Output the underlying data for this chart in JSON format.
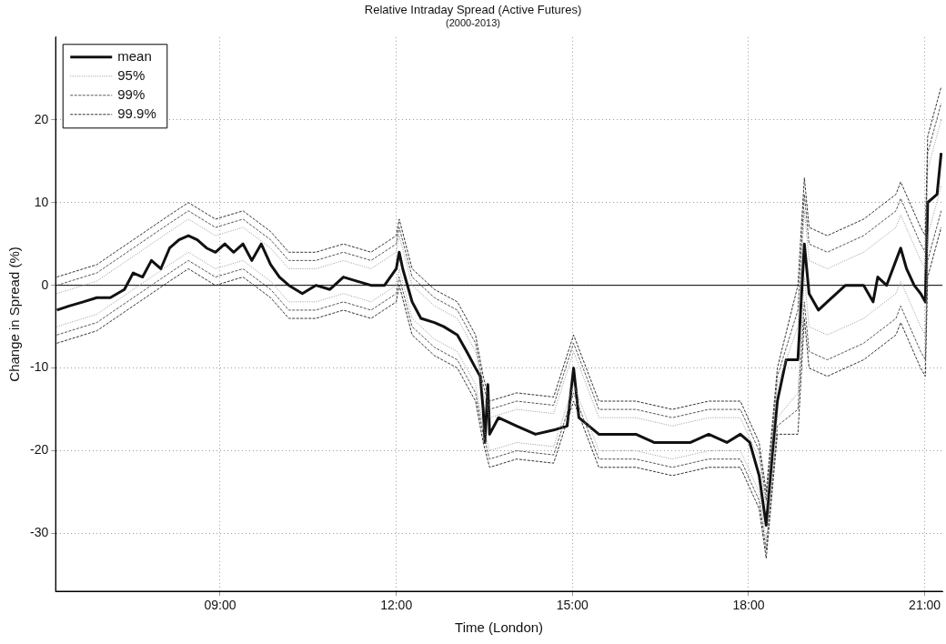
{
  "chart_data": {
    "type": "line",
    "title": "Relative Intraday Spread (Active Futures)",
    "subtitle": "(2000-2013)",
    "xlabel": "Time (London)",
    "ylabel": "Change in Spread (%)",
    "xlim": [
      6.2,
      21.3
    ],
    "xticks": [
      {
        "value": 9,
        "label": "09:00"
      },
      {
        "value": 12,
        "label": "12:00"
      },
      {
        "value": 15,
        "label": "15:00"
      },
      {
        "value": 18,
        "label": "18:00"
      },
      {
        "value": 21,
        "label": "21:00"
      }
    ],
    "ylim": [
      -37,
      30
    ],
    "yticks": [
      -30,
      -20,
      -10,
      0,
      10,
      20
    ],
    "grid": true,
    "legend": "top left",
    "marker": "none",
    "ref_lines": [
      {
        "axis": "y",
        "value": 0,
        "color": "#000000",
        "line_style": "solid"
      }
    ],
    "series": [
      {
        "name": "99.9%",
        "color": "#333333",
        "line_style": "dashed",
        "x": [
          6.22,
          6.9,
          7.52,
          8.14,
          8.46,
          8.92,
          9.39,
          9.86,
          10.17,
          10.63,
          11.1,
          11.57,
          12.0,
          12.05,
          12.27,
          12.65,
          13.04,
          13.35,
          13.48,
          13.59,
          14.05,
          14.68,
          15.02,
          15.45,
          16.08,
          16.7,
          17.32,
          17.86,
          18.18,
          18.3,
          18.49,
          18.84,
          18.95,
          19.03,
          19.34,
          19.96,
          20.51,
          20.59,
          20.93,
          21.01,
          21.05,
          21.28
        ],
        "values": [
          1,
          2.5,
          5.5,
          8.5,
          10,
          8,
          9,
          6.5,
          4,
          4,
          5,
          4,
          6,
          8,
          2,
          -0.5,
          -2,
          -6,
          -11,
          -14,
          -13,
          -13.5,
          -6,
          -14,
          -14,
          -15,
          -14,
          -14,
          -19,
          -25,
          -10,
          0,
          13,
          7,
          6,
          8,
          11,
          12.5,
          7,
          6,
          18,
          24
        ]
      },
      {
        "color": "#333333",
        "line_style": "dashed",
        "x": [
          6.22,
          6.9,
          7.52,
          8.14,
          8.46,
          8.92,
          9.39,
          9.86,
          10.17,
          10.63,
          11.1,
          11.57,
          12.0,
          12.05,
          12.27,
          12.65,
          13.04,
          13.35,
          13.48,
          13.59,
          14.05,
          14.68,
          15.02,
          15.45,
          16.08,
          16.7,
          17.32,
          17.86,
          18.18,
          18.3,
          18.49,
          18.84,
          18.95,
          19.03,
          19.34,
          19.96,
          20.51,
          20.59,
          20.93,
          21.01,
          21.05,
          21.28
        ],
        "values": [
          -7,
          -5.5,
          -2.5,
          0.5,
          2,
          0,
          1,
          -1.5,
          -4,
          -4,
          -3,
          -4,
          -2,
          0,
          -6,
          -8.5,
          -10,
          -14,
          -19,
          -22,
          -21,
          -21.5,
          -14,
          -22,
          -22,
          -23,
          -22,
          -22,
          -27,
          -33,
          -18,
          -18,
          -4,
          -10,
          -11,
          -9,
          -6,
          -4.5,
          -10,
          -11,
          1,
          7
        ]
      },
      {
        "name": "99%",
        "color": "#555555",
        "line_style": "dashed",
        "x": [
          6.22,
          6.9,
          7.52,
          8.14,
          8.46,
          8.92,
          9.39,
          9.86,
          10.17,
          10.63,
          11.1,
          11.57,
          12.0,
          12.05,
          12.27,
          12.65,
          13.04,
          13.35,
          13.48,
          13.59,
          14.05,
          14.68,
          15.02,
          15.45,
          16.08,
          16.7,
          17.32,
          17.86,
          18.18,
          18.3,
          18.49,
          18.84,
          18.95,
          19.03,
          19.34,
          19.96,
          20.51,
          20.59,
          20.93,
          21.01,
          21.05,
          21.28
        ],
        "values": [
          0,
          1.5,
          4.5,
          7.5,
          9,
          7,
          8,
          5.5,
          3,
          3,
          4,
          3,
          5,
          7,
          1,
          -1.5,
          -3,
          -7,
          -12,
          -15,
          -14,
          -14.5,
          -7,
          -15,
          -15,
          -16,
          -15,
          -15,
          -20,
          -26,
          -11,
          -3,
          11,
          5,
          4,
          6,
          9,
          10.5,
          5,
          4,
          16,
          22
        ]
      },
      {
        "color": "#555555",
        "line_style": "dashed",
        "x": [
          6.22,
          6.9,
          7.52,
          8.14,
          8.46,
          8.92,
          9.39,
          9.86,
          10.17,
          10.63,
          11.1,
          11.57,
          12.0,
          12.05,
          12.27,
          12.65,
          13.04,
          13.35,
          13.48,
          13.59,
          14.05,
          14.68,
          15.02,
          15.45,
          16.08,
          16.7,
          17.32,
          17.86,
          18.18,
          18.3,
          18.49,
          18.84,
          18.95,
          19.03,
          19.34,
          19.96,
          20.51,
          20.59,
          20.93,
          21.01,
          21.05,
          21.28
        ],
        "values": [
          -6,
          -4.5,
          -1.5,
          1.5,
          3,
          1,
          2,
          -0.5,
          -3,
          -3,
          -2,
          -3,
          -1,
          1,
          -5,
          -7.5,
          -9,
          -13,
          -18,
          -21,
          -20,
          -20.5,
          -13,
          -21,
          -21,
          -22,
          -21,
          -21,
          -26,
          -32,
          -17,
          -15,
          -2,
          -8,
          -9,
          -7,
          -4,
          -2.5,
          -8,
          -9,
          3,
          9
        ]
      },
      {
        "name": "95%",
        "color": "#999999",
        "line_style": "dotted",
        "x": [
          6.22,
          6.9,
          7.52,
          8.14,
          8.46,
          8.92,
          9.39,
          9.86,
          10.17,
          10.63,
          11.1,
          11.57,
          12.0,
          12.05,
          12.27,
          12.65,
          13.04,
          13.35,
          13.48,
          13.59,
          14.05,
          14.68,
          15.02,
          15.45,
          16.08,
          16.7,
          17.32,
          17.86,
          18.18,
          18.3,
          18.49,
          18.84,
          18.95,
          19.03,
          19.34,
          19.96,
          20.51,
          20.59,
          20.93,
          21.01,
          21.05,
          21.28
        ],
        "values": [
          -1,
          0.5,
          3.5,
          6.5,
          8,
          6,
          7,
          4.5,
          2,
          2,
          3,
          2,
          4,
          6,
          0,
          -2.5,
          -4,
          -8,
          -13,
          -16,
          -15,
          -15.5,
          -8,
          -16,
          -16,
          -17,
          -16,
          -16,
          -21,
          -27,
          -12,
          -5,
          9,
          3,
          2,
          4,
          7,
          8.5,
          3,
          2,
          14,
          20
        ]
      },
      {
        "color": "#999999",
        "line_style": "dotted",
        "x": [
          6.22,
          6.9,
          7.52,
          8.14,
          8.46,
          8.92,
          9.39,
          9.86,
          10.17,
          10.63,
          11.1,
          11.57,
          12.0,
          12.05,
          12.27,
          12.65,
          13.04,
          13.35,
          13.48,
          13.59,
          14.05,
          14.68,
          15.02,
          15.45,
          16.08,
          16.7,
          17.32,
          17.86,
          18.18,
          18.3,
          18.49,
          18.84,
          18.95,
          19.03,
          19.34,
          19.96,
          20.51,
          20.59,
          20.93,
          21.01,
          21.05,
          21.28
        ],
        "values": [
          -5,
          -3.5,
          -0.5,
          2.5,
          4,
          2,
          3,
          0.5,
          -2,
          -2,
          -1,
          -2,
          0,
          2,
          -4,
          -6.5,
          -8,
          -12,
          -17,
          -20,
          -19,
          -19.5,
          -12,
          -20,
          -20,
          -21,
          -20,
          -20,
          -25,
          -31,
          -16,
          -13,
          1,
          -5,
          -6,
          -4,
          -1,
          0.5,
          -5,
          -6,
          6,
          12
        ]
      },
      {
        "name": "mean",
        "color": "#111111",
        "line_style": "solid",
        "x": [
          6.22,
          6.43,
          6.67,
          6.9,
          7.13,
          7.37,
          7.52,
          7.68,
          7.83,
          7.99,
          8.14,
          8.3,
          8.46,
          8.61,
          8.77,
          8.92,
          9.08,
          9.23,
          9.39,
          9.54,
          9.7,
          9.86,
          10.01,
          10.17,
          10.4,
          10.63,
          10.87,
          11.1,
          11.33,
          11.57,
          11.8,
          12.0,
          12.05,
          12.11,
          12.27,
          12.42,
          12.65,
          12.81,
          13.04,
          13.2,
          13.35,
          13.43,
          13.48,
          13.51,
          13.56,
          13.59,
          13.74,
          14.05,
          14.37,
          14.68,
          14.91,
          15.02,
          15.11,
          15.45,
          15.77,
          16.08,
          16.39,
          16.7,
          17.01,
          17.32,
          17.63,
          17.86,
          18.02,
          18.18,
          18.3,
          18.41,
          18.49,
          18.64,
          18.84,
          18.95,
          19.03,
          19.19,
          19.34,
          19.65,
          19.96,
          20.12,
          20.2,
          20.35,
          20.51,
          20.59,
          20.69,
          20.82,
          20.93,
          21.01,
          21.05,
          21.21,
          21.28
        ],
        "values": [
          -3,
          -2.5,
          -2,
          -1.5,
          -1.5,
          -0.5,
          1.5,
          1,
          3,
          2,
          4.5,
          5.5,
          6,
          5.5,
          4.5,
          4,
          5,
          4,
          5,
          3,
          5,
          2.5,
          1,
          0,
          -1,
          0,
          -0.5,
          1,
          0.5,
          0,
          0,
          2,
          4,
          2,
          -2,
          -4,
          -4.5,
          -5,
          -6,
          -8,
          -10,
          -11,
          -15,
          -19,
          -12,
          -18,
          -16,
          -17,
          -18,
          -17.5,
          -17,
          -10,
          -16,
          -18,
          -18,
          -18,
          -19,
          -19,
          -19,
          -18,
          -19,
          -18,
          -19,
          -23,
          -29,
          -20,
          -14,
          -9,
          -9,
          5,
          -1,
          -3,
          -2,
          0,
          0,
          -2,
          1,
          0,
          3,
          4.5,
          2,
          0,
          -1,
          -2,
          10,
          11,
          16
        ]
      }
    ]
  }
}
